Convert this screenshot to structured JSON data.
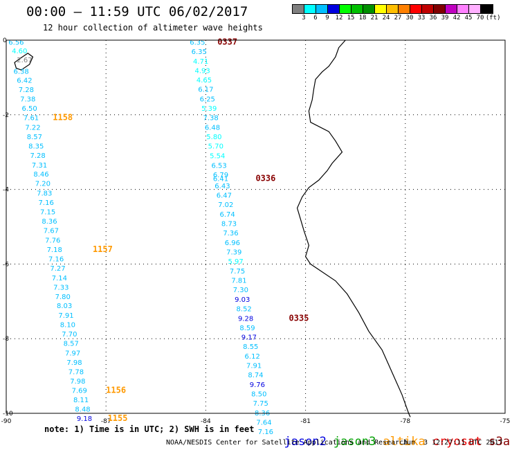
{
  "header": {
    "title": "00:00 – 11:59 UTC 06/02/2017",
    "subtitle": "12 hour collection of altimeter wave heights"
  },
  "colorbar": {
    "colors": [
      "#7f7f7f",
      "#00ffff",
      "#00bfff",
      "#0000e0",
      "#00ff00",
      "#00c000",
      "#009000",
      "#ffff00",
      "#ffbf00",
      "#ff8000",
      "#ff0000",
      "#c00000",
      "#800000",
      "#c000c0",
      "#ff80ff",
      "#ffb0ff",
      "#000000"
    ],
    "labels": [
      "3",
      "6",
      "9",
      "12",
      "15",
      "18",
      "21",
      "24",
      "27",
      "30",
      "33",
      "36",
      "39",
      "42",
      "45",
      "70",
      "(ft)"
    ]
  },
  "axes": {
    "x_ticks": [
      "-90",
      "-87",
      "-84",
      "-81",
      "-78",
      "-75"
    ],
    "y_ticks": [
      "0",
      "-2",
      "-4",
      "-6",
      "-8",
      "-10"
    ]
  },
  "map_data": {
    "lon_range": [
      -90,
      -75
    ],
    "lat_range": [
      -10,
      0
    ],
    "tracks": [
      {
        "satellite": "altika",
        "points": [
          {
            "lon": -89.7,
            "lat": -0.05,
            "swh": "6.56"
          },
          {
            "lon": -89.6,
            "lat": -0.28,
            "swh": "4.60"
          },
          {
            "lon": -89.45,
            "lat": -0.52,
            "swh": "2.67"
          },
          {
            "lon": -89.55,
            "lat": -0.83,
            "swh": "6.38"
          },
          {
            "lon": -89.45,
            "lat": -1.07,
            "swh": "6.42"
          },
          {
            "lon": -89.4,
            "lat": -1.32,
            "swh": "7.28"
          },
          {
            "lon": -89.35,
            "lat": -1.57,
            "swh": "7.38"
          },
          {
            "lon": -89.3,
            "lat": -1.82,
            "swh": "6.50"
          },
          {
            "lon": -89.25,
            "lat": -2.07,
            "swh": "7.61"
          },
          {
            "lon": -89.2,
            "lat": -2.33,
            "swh": "7.22"
          },
          {
            "lon": -89.15,
            "lat": -2.58,
            "swh": "8.57"
          },
          {
            "lon": -89.1,
            "lat": -2.83,
            "swh": "8.35"
          },
          {
            "lon": -89.05,
            "lat": -3.08,
            "swh": "7.28"
          },
          {
            "lon": -89.0,
            "lat": -3.34,
            "swh": "7.31"
          },
          {
            "lon": -88.95,
            "lat": -3.58,
            "swh": "8.46"
          },
          {
            "lon": -88.9,
            "lat": -3.83,
            "swh": "7.20"
          },
          {
            "lon": -88.85,
            "lat": -4.09,
            "swh": "7.83"
          },
          {
            "lon": -88.8,
            "lat": -4.34,
            "swh": "7.16"
          },
          {
            "lon": -88.75,
            "lat": -4.59,
            "swh": "7.15"
          },
          {
            "lon": -88.7,
            "lat": -4.84,
            "swh": "8.36"
          },
          {
            "lon": -88.65,
            "lat": -5.09,
            "swh": "7.67"
          },
          {
            "lon": -88.6,
            "lat": -5.35,
            "swh": "7.76"
          },
          {
            "lon": -88.55,
            "lat": -5.6,
            "swh": "7.18"
          },
          {
            "lon": -88.5,
            "lat": -5.85,
            "swh": "7.16"
          },
          {
            "lon": -88.45,
            "lat": -6.1,
            "swh": "7.27"
          },
          {
            "lon": -88.4,
            "lat": -6.36,
            "swh": "7.14"
          },
          {
            "lon": -88.35,
            "lat": -6.61,
            "swh": "7.33"
          },
          {
            "lon": -88.3,
            "lat": -6.86,
            "swh": "7.80"
          },
          {
            "lon": -88.25,
            "lat": -7.11,
            "swh": "8.03"
          },
          {
            "lon": -88.2,
            "lat": -7.37,
            "swh": "7.91"
          },
          {
            "lon": -88.15,
            "lat": -7.62,
            "swh": "8.10"
          },
          {
            "lon": -88.1,
            "lat": -7.87,
            "swh": "7.70"
          },
          {
            "lon": -88.05,
            "lat": -8.12,
            "swh": "8.57"
          },
          {
            "lon": -88.0,
            "lat": -8.38,
            "swh": "7.97"
          },
          {
            "lon": -87.95,
            "lat": -8.63,
            "swh": "7.98"
          },
          {
            "lon": -87.9,
            "lat": -8.88,
            "swh": "7.78"
          },
          {
            "lon": -87.85,
            "lat": -9.13,
            "swh": "7.98"
          },
          {
            "lon": -87.8,
            "lat": -9.38,
            "swh": "7.69"
          },
          {
            "lon": -87.75,
            "lat": -9.63,
            "swh": "8.11"
          },
          {
            "lon": -87.7,
            "lat": -9.88,
            "swh": "8.48"
          },
          {
            "lon": -87.65,
            "lat": -10.13,
            "swh": "9.18"
          }
        ],
        "times": [
          {
            "lon": -88.3,
            "lat": -2.07,
            "label": "1158"
          },
          {
            "lon": -87.1,
            "lat": -5.6,
            "label": "1157"
          },
          {
            "lon": -86.7,
            "lat": -9.38,
            "label": "1156"
          },
          {
            "lon": -86.65,
            "lat": -10.13,
            "label": "1155"
          }
        ]
      },
      {
        "satellite": "s3a",
        "points": [
          {
            "lon": -84.25,
            "lat": -0.05,
            "swh": "6.35"
          },
          {
            "lon": -84.2,
            "lat": -0.3,
            "swh": "6.35"
          },
          {
            "lon": -84.15,
            "lat": -0.56,
            "swh": "4.71"
          },
          {
            "lon": -84.1,
            "lat": -0.81,
            "swh": "4.93"
          },
          {
            "lon": -84.05,
            "lat": -1.06,
            "swh": "4.65"
          },
          {
            "lon": -84.0,
            "lat": -1.31,
            "swh": "6.17"
          },
          {
            "lon": -83.95,
            "lat": -1.57,
            "swh": "6.25"
          },
          {
            "lon": -83.9,
            "lat": -1.82,
            "swh": "5.39"
          },
          {
            "lon": -83.85,
            "lat": -2.07,
            "swh": "7.38"
          },
          {
            "lon": -83.8,
            "lat": -2.33,
            "swh": "6.48"
          },
          {
            "lon": -83.75,
            "lat": -2.58,
            "swh": "5.80"
          },
          {
            "lon": -83.7,
            "lat": -2.83,
            "swh": "5.70"
          },
          {
            "lon": -83.65,
            "lat": -3.09,
            "swh": "5.54"
          },
          {
            "lon": -83.6,
            "lat": -3.35,
            "swh": "6.53"
          },
          {
            "lon": -83.55,
            "lat": -3.6,
            "swh": "6.79"
          },
          {
            "lon": -83.55,
            "lat": -3.7,
            "swh": "6.41"
          },
          {
            "lon": -83.5,
            "lat": -3.9,
            "swh": "6.43"
          },
          {
            "lon": -83.45,
            "lat": -4.15,
            "swh": "6.47"
          },
          {
            "lon": -83.4,
            "lat": -4.4,
            "swh": "7.02"
          },
          {
            "lon": -83.35,
            "lat": -4.66,
            "swh": "6.74"
          },
          {
            "lon": -83.3,
            "lat": -4.91,
            "swh": "8.73"
          },
          {
            "lon": -83.25,
            "lat": -5.16,
            "swh": "7.36"
          },
          {
            "lon": -83.2,
            "lat": -5.42,
            "swh": "6.96"
          },
          {
            "lon": -83.15,
            "lat": -5.67,
            "swh": "7.39"
          },
          {
            "lon": -83.1,
            "lat": -5.92,
            "swh": "5.97"
          },
          {
            "lon": -83.05,
            "lat": -6.18,
            "swh": "7.75"
          },
          {
            "lon": -83.0,
            "lat": -6.43,
            "swh": "7.81"
          },
          {
            "lon": -82.95,
            "lat": -6.68,
            "swh": "7.30"
          },
          {
            "lon": -82.9,
            "lat": -6.94,
            "swh": "9.03"
          },
          {
            "lon": -82.85,
            "lat": -7.19,
            "swh": "8.52"
          },
          {
            "lon": -82.8,
            "lat": -7.45,
            "swh": "9.28"
          },
          {
            "lon": -82.75,
            "lat": -7.7,
            "swh": "8.59"
          },
          {
            "lon": -82.7,
            "lat": -7.95,
            "swh": "9.17"
          },
          {
            "lon": -82.65,
            "lat": -8.2,
            "swh": "8.55"
          },
          {
            "lon": -82.6,
            "lat": -8.46,
            "swh": "6.12"
          },
          {
            "lon": -82.55,
            "lat": -8.71,
            "swh": "7.91"
          },
          {
            "lon": -82.5,
            "lat": -8.96,
            "swh": "8.74"
          },
          {
            "lon": -82.45,
            "lat": -9.22,
            "swh": "9.76"
          },
          {
            "lon": -82.4,
            "lat": -9.47,
            "swh": "8.50"
          },
          {
            "lon": -82.35,
            "lat": -9.72,
            "swh": "7.75"
          },
          {
            "lon": -82.3,
            "lat": -9.98,
            "swh": "8.36"
          },
          {
            "lon": -82.25,
            "lat": -10.23,
            "swh": "7.64"
          },
          {
            "lon": -82.2,
            "lat": -10.48,
            "swh": "7.16"
          }
        ],
        "times": [
          {
            "lon": -83.35,
            "lat": -0.05,
            "label": "0337"
          },
          {
            "lon": -82.2,
            "lat": -3.7,
            "label": "0336"
          },
          {
            "lon": -81.2,
            "lat": -7.45,
            "label": "0335"
          }
        ]
      }
    ],
    "coastline": [
      [
        -79.8,
        0.0
      ],
      [
        -80.0,
        -0.2
      ],
      [
        -80.1,
        -0.45
      ],
      [
        -80.3,
        -0.7
      ],
      [
        -80.5,
        -0.85
      ],
      [
        -80.7,
        -1.05
      ],
      [
        -80.75,
        -1.3
      ],
      [
        -80.8,
        -1.6
      ],
      [
        -80.9,
        -1.9
      ],
      [
        -80.85,
        -2.2
      ],
      [
        -80.3,
        -2.45
      ],
      [
        -80.1,
        -2.7
      ],
      [
        -79.9,
        -3.0
      ],
      [
        -80.2,
        -3.3
      ],
      [
        -80.35,
        -3.5
      ],
      [
        -80.6,
        -3.75
      ],
      [
        -80.9,
        -3.95
      ],
      [
        -81.1,
        -4.2
      ],
      [
        -81.25,
        -4.5
      ],
      [
        -81.15,
        -4.8
      ],
      [
        -81.05,
        -5.1
      ],
      [
        -80.9,
        -5.5
      ],
      [
        -81.0,
        -5.8
      ],
      [
        -80.85,
        -6.0
      ],
      [
        -80.6,
        -6.15
      ],
      [
        -80.1,
        -6.45
      ],
      [
        -79.75,
        -6.8
      ],
      [
        -79.4,
        -7.3
      ],
      [
        -79.1,
        -7.8
      ],
      [
        -78.7,
        -8.3
      ],
      [
        -78.5,
        -8.7
      ],
      [
        -78.3,
        -9.1
      ],
      [
        -78.1,
        -9.5
      ],
      [
        -77.9,
        -10.0
      ],
      [
        -77.85,
        -10.1
      ]
    ],
    "islands": [
      [
        [
          -89.7,
          -0.75
        ],
        [
          -89.55,
          -0.8
        ],
        [
          -89.3,
          -0.65
        ],
        [
          -89.2,
          -0.45
        ],
        [
          -89.35,
          -0.35
        ],
        [
          -89.6,
          -0.5
        ],
        [
          -89.75,
          -0.6
        ],
        [
          -89.7,
          -0.75
        ]
      ]
    ]
  },
  "footer": {
    "note": "note: 1) Time is in UTC; 2) SWH is in feet",
    "legend": [
      {
        "name": "jason2",
        "color": "#0000e0"
      },
      {
        "name": "jason3",
        "color": "#00a000"
      },
      {
        "name": "altika",
        "color": "#ff9900"
      },
      {
        "name": "cryosat",
        "color": "#ee0000"
      },
      {
        "name": "s3a",
        "color": "#880000"
      }
    ],
    "credit": "NOAA/NESDIS Center for Satellite Applications and Research",
    "timestamp": "Jun  3 12:27:11 UTC 2017"
  }
}
